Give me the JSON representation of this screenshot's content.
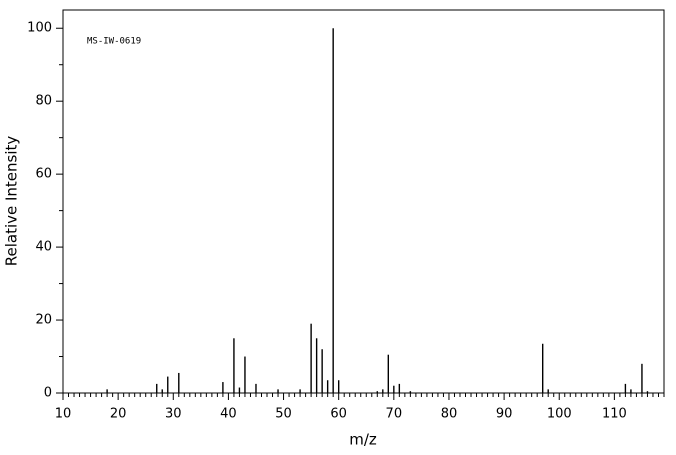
{
  "chart_data": {
    "type": "stem",
    "annotation": "MS-IW-0619",
    "x_label": "m/z",
    "y_label": "Relative Intensity",
    "x": [
      18,
      27,
      28,
      29,
      31,
      39,
      41,
      42,
      43,
      45,
      49,
      53,
      55,
      56,
      57,
      58,
      59,
      60,
      67,
      68,
      69,
      70,
      71,
      73,
      97,
      98,
      112,
      113,
      115,
      116
    ],
    "values": [
      1,
      2.5,
      1,
      4.5,
      5.5,
      3,
      15,
      1.5,
      10,
      2.5,
      1,
      1,
      19,
      15,
      12,
      3.5,
      100,
      3.5,
      0.5,
      1,
      10.5,
      2,
      2.5,
      0.5,
      13.5,
      1,
      2.5,
      1,
      8,
      0.5
    ],
    "color": "#000000",
    "xlim": [
      10,
      119
    ],
    "ylim": [
      0,
      105
    ],
    "xticks": [
      10,
      20,
      30,
      40,
      50,
      60,
      70,
      80,
      90,
      100,
      110
    ],
    "yticks": [
      0,
      20,
      40,
      60,
      80,
      100
    ],
    "xminorticks": [
      11,
      12,
      13,
      14,
      15,
      16,
      17,
      18,
      19,
      21,
      22,
      23,
      24,
      25,
      26,
      27,
      28,
      29,
      31,
      32,
      33,
      34,
      35,
      36,
      37,
      38,
      39,
      41,
      42,
      43,
      44,
      45,
      46,
      47,
      48,
      49,
      51,
      52,
      53,
      54,
      55,
      56,
      57,
      58,
      59,
      61,
      62,
      63,
      64,
      65,
      66,
      67,
      68,
      69,
      71,
      72,
      73,
      74,
      75,
      76,
      77,
      78,
      79,
      81,
      82,
      83,
      84,
      85,
      86,
      87,
      88,
      89,
      91,
      92,
      93,
      94,
      95,
      96,
      97,
      98,
      99,
      101,
      102,
      103,
      104,
      105,
      106,
      107,
      108,
      109,
      111,
      112,
      113,
      114,
      115,
      116,
      117,
      118,
      119
    ],
    "yminorticks": [
      10,
      30,
      50,
      70,
      90
    ]
  }
}
